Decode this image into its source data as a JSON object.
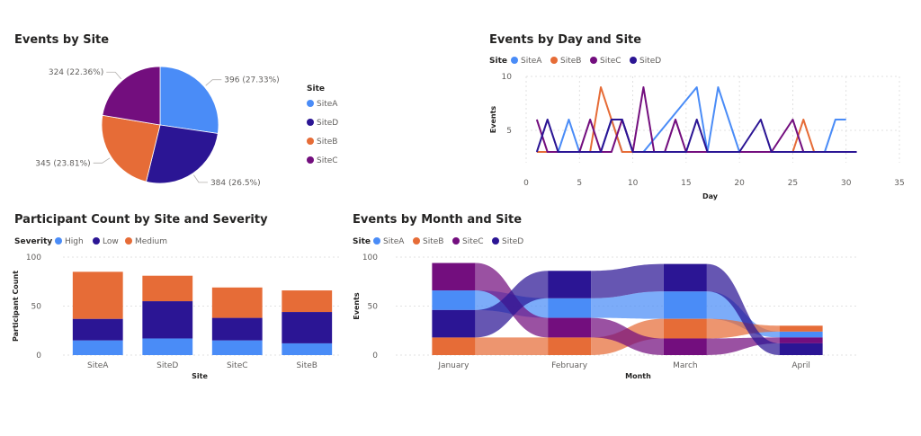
{
  "colors": {
    "SiteA": "#4a8cf7",
    "SiteB": "#e66c37",
    "SiteC": "#730e7e",
    "SiteD": "#2b1594",
    "High": "#4a8cf7",
    "Low": "#2b1594",
    "Medium": "#e66c37"
  },
  "chart_data": [
    {
      "type": "pie",
      "title": "Events by Site",
      "legend_title": "Site",
      "categories": [
        "SiteA",
        "SiteD",
        "SiteB",
        "SiteC"
      ],
      "values": [
        396,
        384,
        345,
        324
      ],
      "labels": [
        "396 (27.33%)",
        "384 (26.5%)",
        "345 (23.81%)",
        "324 (22.36%)"
      ]
    },
    {
      "type": "line",
      "title": "Events by Day and Site",
      "legend_title": "Site",
      "xlabel": "Day",
      "ylabel": "Events",
      "xlim": [
        0,
        35
      ],
      "ylim": [
        2,
        10
      ],
      "xticks": [
        0,
        5,
        10,
        15,
        20,
        25,
        30,
        35
      ],
      "yticks": [
        5,
        10
      ],
      "series": [
        {
          "name": "SiteA",
          "points": [
            [
              1,
              3
            ],
            [
              2,
              3
            ],
            [
              3,
              3
            ],
            [
              4,
              6
            ],
            [
              5,
              3
            ],
            [
              6,
              3
            ],
            [
              7,
              3
            ],
            [
              8,
              6
            ],
            [
              9,
              3
            ],
            [
              10,
              3
            ],
            [
              11,
              3
            ],
            [
              16,
              9
            ],
            [
              17,
              3
            ],
            [
              18,
              9
            ],
            [
              19,
              6
            ],
            [
              20,
              3
            ],
            [
              24,
              3
            ],
            [
              25,
              3
            ],
            [
              26,
              3
            ],
            [
              27,
              3
            ],
            [
              28,
              3
            ],
            [
              29,
              6
            ],
            [
              30,
              6
            ]
          ]
        },
        {
          "name": "SiteB",
          "points": [
            [
              1,
              3
            ],
            [
              5,
              3
            ],
            [
              6,
              3
            ],
            [
              7,
              9
            ],
            [
              8,
              6
            ],
            [
              9,
              3
            ],
            [
              10,
              3
            ],
            [
              14,
              3
            ],
            [
              19,
              3
            ],
            [
              21,
              3
            ],
            [
              22,
              3
            ],
            [
              23,
              3
            ],
            [
              24,
              3
            ],
            [
              25,
              3
            ],
            [
              26,
              6
            ],
            [
              27,
              3
            ]
          ]
        },
        {
          "name": "SiteC",
          "points": [
            [
              1,
              6
            ],
            [
              2,
              3
            ],
            [
              4,
              3
            ],
            [
              5,
              3
            ],
            [
              6,
              6
            ],
            [
              7,
              3
            ],
            [
              8,
              3
            ],
            [
              9,
              6
            ],
            [
              10,
              3
            ],
            [
              11,
              9
            ],
            [
              12,
              3
            ],
            [
              13,
              3
            ],
            [
              14,
              6
            ],
            [
              15,
              3
            ],
            [
              16,
              3
            ],
            [
              20,
              3
            ],
            [
              22,
              3
            ],
            [
              23,
              3
            ],
            [
              25,
              6
            ],
            [
              26,
              3
            ]
          ]
        },
        {
          "name": "SiteD",
          "points": [
            [
              1,
              3
            ],
            [
              2,
              6
            ],
            [
              3,
              3
            ],
            [
              7,
              3
            ],
            [
              8,
              6
            ],
            [
              9,
              6
            ],
            [
              10,
              3
            ],
            [
              11,
              3
            ],
            [
              14,
              3
            ],
            [
              15,
              3
            ],
            [
              16,
              6
            ],
            [
              17,
              3
            ],
            [
              18,
              3
            ],
            [
              20,
              3
            ],
            [
              22,
              6
            ],
            [
              23,
              3
            ],
            [
              24,
              3
            ],
            [
              29,
              3
            ],
            [
              31,
              3
            ]
          ]
        }
      ]
    },
    {
      "type": "bar",
      "stacked": true,
      "title": "Participant Count by Site and Severity",
      "legend_title": "Severity",
      "xlabel": "Site",
      "ylabel": "Participant Count",
      "ylim": [
        0,
        100
      ],
      "yticks": [
        0,
        50,
        100
      ],
      "categories": [
        "SiteA",
        "SiteD",
        "SiteC",
        "SiteB"
      ],
      "series": [
        {
          "name": "High",
          "values": [
            15,
            17,
            15,
            12
          ]
        },
        {
          "name": "Low",
          "values": [
            22,
            38,
            23,
            32
          ]
        },
        {
          "name": "Medium",
          "values": [
            48,
            26,
            31,
            22
          ]
        }
      ]
    },
    {
      "type": "area",
      "subtype": "ribbon",
      "title": "Events by Month and Site",
      "legend_title": "Site",
      "xlabel": "Month",
      "ylabel": "Events",
      "ylim": [
        0,
        100
      ],
      "yticks": [
        0,
        50,
        100
      ],
      "categories": [
        "January",
        "February",
        "March",
        "April"
      ],
      "series": [
        {
          "name": "SiteA",
          "values": [
            20,
            20,
            28,
            6
          ]
        },
        {
          "name": "SiteB",
          "values": [
            18,
            18,
            20,
            6
          ]
        },
        {
          "name": "SiteC",
          "values": [
            28,
            20,
            17,
            6
          ]
        },
        {
          "name": "SiteD",
          "values": [
            28,
            28,
            28,
            12
          ]
        }
      ],
      "order": [
        [
          "SiteB",
          "SiteD",
          "SiteA",
          "SiteC"
        ],
        [
          "SiteB",
          "SiteC",
          "SiteA",
          "SiteD"
        ],
        [
          "SiteC",
          "SiteB",
          "SiteA",
          "SiteD"
        ],
        [
          "SiteD",
          "SiteC",
          "SiteA",
          "SiteB"
        ]
      ]
    }
  ]
}
